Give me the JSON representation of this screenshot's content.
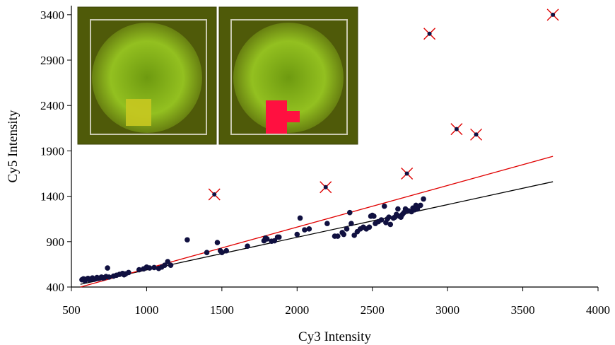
{
  "chart_data": {
    "type": "scatter",
    "xlabel": "Cy3 Intensity",
    "ylabel": "Cy5 Intensity",
    "xlim": [
      500,
      4000
    ],
    "ylim": [
      400,
      3500
    ],
    "x_ticks": [
      500,
      1000,
      1500,
      2000,
      2500,
      3000,
      3500,
      4000
    ],
    "y_ticks": [
      400,
      900,
      1400,
      1900,
      2400,
      2900,
      3400
    ],
    "x_tick_labels": [
      "500",
      "1000",
      "1500",
      "2000",
      "2500",
      "3000",
      "3500",
      "4000"
    ],
    "y_tick_labels": [
      "400",
      "900",
      "1400",
      "1900",
      "2400",
      "2900",
      "3400"
    ],
    "grid": false,
    "legend": "none",
    "series": [
      {
        "marker": "circle",
        "color": "#101040",
        "points": [
          [
            570,
            480
          ],
          [
            580,
            490
          ],
          [
            590,
            470
          ],
          [
            600,
            485
          ],
          [
            610,
            495
          ],
          [
            620,
            480
          ],
          [
            630,
            490
          ],
          [
            640,
            500
          ],
          [
            650,
            485
          ],
          [
            660,
            490
          ],
          [
            670,
            505
          ],
          [
            680,
            495
          ],
          [
            690,
            500
          ],
          [
            700,
            510
          ],
          [
            710,
            500
          ],
          [
            720,
            505
          ],
          [
            730,
            515
          ],
          [
            740,
            610
          ],
          [
            750,
            510
          ],
          [
            780,
            520
          ],
          [
            800,
            530
          ],
          [
            820,
            540
          ],
          [
            840,
            550
          ],
          [
            850,
            535
          ],
          [
            860,
            545
          ],
          [
            880,
            560
          ],
          [
            950,
            590
          ],
          [
            980,
            600
          ],
          [
            1000,
            620
          ],
          [
            1020,
            610
          ],
          [
            1050,
            615
          ],
          [
            1080,
            605
          ],
          [
            1100,
            620
          ],
          [
            1120,
            640
          ],
          [
            1140,
            680
          ],
          [
            1160,
            640
          ],
          [
            1270,
            920
          ],
          [
            1400,
            780
          ],
          [
            1470,
            890
          ],
          [
            1490,
            800
          ],
          [
            1500,
            780
          ],
          [
            1530,
            800
          ],
          [
            1670,
            850
          ],
          [
            1780,
            910
          ],
          [
            1790,
            940
          ],
          [
            1800,
            930
          ],
          [
            1830,
            905
          ],
          [
            1850,
            910
          ],
          [
            1870,
            950
          ],
          [
            1880,
            950
          ],
          [
            2000,
            980
          ],
          [
            2020,
            1160
          ],
          [
            2050,
            1030
          ],
          [
            2080,
            1040
          ],
          [
            2200,
            1100
          ],
          [
            2250,
            960
          ],
          [
            2270,
            960
          ],
          [
            2300,
            1000
          ],
          [
            2310,
            980
          ],
          [
            2330,
            1040
          ],
          [
            2350,
            1220
          ],
          [
            2360,
            1100
          ],
          [
            2380,
            970
          ],
          [
            2400,
            1010
          ],
          [
            2420,
            1040
          ],
          [
            2440,
            1060
          ],
          [
            2460,
            1040
          ],
          [
            2480,
            1060
          ],
          [
            2490,
            1180
          ],
          [
            2500,
            1190
          ],
          [
            2510,
            1180
          ],
          [
            2520,
            1100
          ],
          [
            2540,
            1120
          ],
          [
            2560,
            1140
          ],
          [
            2580,
            1290
          ],
          [
            2590,
            1110
          ],
          [
            2600,
            1150
          ],
          [
            2610,
            1170
          ],
          [
            2620,
            1090
          ],
          [
            2640,
            1160
          ],
          [
            2650,
            1170
          ],
          [
            2660,
            1200
          ],
          [
            2670,
            1260
          ],
          [
            2680,
            1180
          ],
          [
            2690,
            1170
          ],
          [
            2700,
            1200
          ],
          [
            2710,
            1220
          ],
          [
            2720,
            1260
          ],
          [
            2740,
            1240
          ],
          [
            2760,
            1230
          ],
          [
            2770,
            1270
          ],
          [
            2780,
            1250
          ],
          [
            2790,
            1300
          ],
          [
            2800,
            1260
          ],
          [
            2820,
            1300
          ],
          [
            2840,
            1370
          ]
        ]
      },
      {
        "marker": "x",
        "color": "#e00000",
        "points": [
          [
            1450,
            1420
          ],
          [
            2190,
            1500
          ],
          [
            2730,
            1650
          ],
          [
            2880,
            3190
          ],
          [
            3060,
            2140
          ],
          [
            3190,
            2080
          ],
          [
            3700,
            3400
          ]
        ]
      }
    ],
    "trend_lines": [
      {
        "color": "#000000",
        "from": [
          560,
          430
        ],
        "to": [
          3700,
          1560
        ]
      },
      {
        "color": "#e00000",
        "from": [
          560,
          400
        ],
        "to": [
          3700,
          1840
        ]
      }
    ]
  }
}
